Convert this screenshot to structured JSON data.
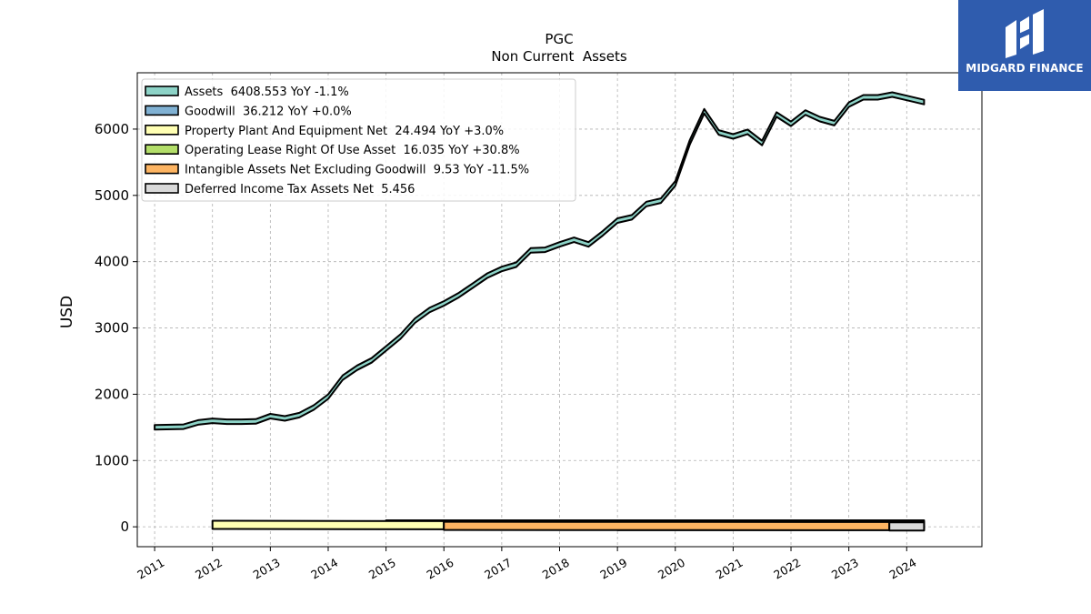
{
  "chart_data": {
    "type": "area",
    "title": "PGC",
    "subtitle": "Non Current  Assets",
    "ylabel": "USD",
    "xlabel": "",
    "ylim": [
      -300,
      6850
    ],
    "xlim": [
      2010.7,
      2025.3
    ],
    "grid": true,
    "legend_position": "top-left",
    "yticks": [
      0,
      1000,
      2000,
      3000,
      4000,
      5000,
      6000
    ],
    "xticks": [
      "2011",
      "2012",
      "2013",
      "2014",
      "2015",
      "2016",
      "2017",
      "2018",
      "2019",
      "2020",
      "2021",
      "2022",
      "2023",
      "2024"
    ],
    "series": [
      {
        "name": "Assets",
        "legend": "Assets  6408.553 YoY -1.1%",
        "color": "#8dd3c7",
        "x": [
          2011.0,
          2011.5,
          2011.75,
          2012.0,
          2012.25,
          2012.5,
          2012.75,
          2013.0,
          2013.25,
          2013.5,
          2013.75,
          2014.0,
          2014.25,
          2014.5,
          2014.75,
          2015.0,
          2015.25,
          2015.5,
          2015.75,
          2016.0,
          2016.25,
          2016.5,
          2016.75,
          2017.0,
          2017.25,
          2017.5,
          2017.75,
          2018.0,
          2018.25,
          2018.5,
          2018.75,
          2019.0,
          2019.25,
          2019.5,
          2019.75,
          2020.0,
          2020.25,
          2020.5,
          2020.75,
          2021.0,
          2021.25,
          2021.5,
          2021.75,
          2022.0,
          2022.25,
          2022.5,
          2022.75,
          2023.0,
          2023.25,
          2023.5,
          2023.75,
          2024.0,
          2024.3
        ],
        "values": [
          1500,
          1510,
          1575,
          1600,
          1585,
          1585,
          1590,
          1670,
          1635,
          1685,
          1800,
          1965,
          2250,
          2400,
          2510,
          2690,
          2870,
          3110,
          3270,
          3370,
          3490,
          3640,
          3790,
          3890,
          3955,
          4170,
          4180,
          4260,
          4330,
          4260,
          4430,
          4620,
          4670,
          4870,
          4920,
          5180,
          5800,
          6270,
          5950,
          5890,
          5960,
          5790,
          6220,
          6080,
          6250,
          6150,
          6090,
          6370,
          6480,
          6480,
          6520,
          6470,
          6408.553
        ]
      },
      {
        "name": "Goodwill",
        "legend": "Goodwill  36.212 YoY +0.0%",
        "color": "#80b1d3",
        "x": [
          2015.0,
          2024.3
        ],
        "values": [
          36.212,
          36.212
        ]
      },
      {
        "name": "Property Plant And Equipment Net",
        "legend": "Property Plant And Equipment Net  24.494 YoY +3.0%",
        "color": "#ffffb3",
        "x": [
          2012.0,
          2016.0
        ],
        "values": [
          30,
          24.494
        ]
      },
      {
        "name": "Operating Lease Right Of Use Asset",
        "legend": "Operating Lease Right Of Use Asset  16.035 YoY +30.8%",
        "color": "#b3de69",
        "x": [
          2019.0,
          2024.3
        ],
        "values": [
          12,
          16.035
        ]
      },
      {
        "name": "Intangible Assets Net Excluding Goodwill",
        "legend": "Intangible Assets Net Excluding Goodwill  9.53 YoY -11.5%",
        "color": "#fdb462",
        "x": [
          2016.0,
          2023.7
        ],
        "values": [
          14,
          9.53
        ]
      },
      {
        "name": "Deferred Income Tax Assets Net",
        "legend": "Deferred Income Tax Assets Net  5.456",
        "color": "#d9d9d9",
        "x": [
          2023.7,
          2024.3
        ],
        "values": [
          5.456,
          5.456
        ]
      }
    ]
  },
  "logo": {
    "text": "MIDGARD FINANCE"
  }
}
